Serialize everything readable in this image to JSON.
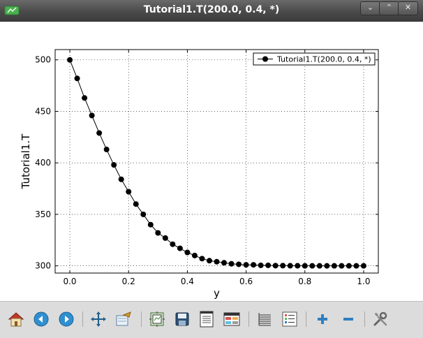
{
  "window": {
    "title": "Tutorial1.T(200.0, 0.4, *)",
    "buttons": {
      "minimize": "⌄",
      "maximize": "⌃",
      "close": "✕"
    }
  },
  "chart_data": {
    "type": "line",
    "title": "",
    "xlabel": "y",
    "ylabel": "Tutorial1.T",
    "xlim": [
      -0.05,
      1.05
    ],
    "ylim": [
      293,
      510
    ],
    "xticks": [
      0.0,
      0.2,
      0.4,
      0.6,
      0.8,
      1.0
    ],
    "xtick_labels": [
      "0.0",
      "0.2",
      "0.4",
      "0.6",
      "0.8",
      "1.0"
    ],
    "yticks": [
      300,
      350,
      400,
      450,
      500
    ],
    "ytick_labels": [
      "300",
      "350",
      "400",
      "450",
      "500"
    ],
    "grid": true,
    "legend_position": "top-right",
    "series": [
      {
        "name": "Tutorial1.T(200.0, 0.4, *)",
        "color": "#000000",
        "marker": "circle",
        "x": [
          0.0,
          0.025,
          0.05,
          0.075,
          0.1,
          0.125,
          0.15,
          0.175,
          0.2,
          0.225,
          0.25,
          0.275,
          0.3,
          0.325,
          0.35,
          0.375,
          0.4,
          0.425,
          0.45,
          0.475,
          0.5,
          0.525,
          0.55,
          0.575,
          0.6,
          0.625,
          0.65,
          0.675,
          0.7,
          0.725,
          0.75,
          0.775,
          0.8,
          0.825,
          0.85,
          0.875,
          0.9,
          0.925,
          0.95,
          0.975,
          1.0
        ],
        "y": [
          500,
          482,
          463,
          446,
          429,
          413,
          398,
          384,
          372,
          360,
          350,
          340,
          332,
          327,
          321,
          317,
          313,
          310,
          307,
          305,
          304,
          303,
          302,
          301.5,
          301,
          301,
          300.5,
          300.5,
          300.2,
          300.2,
          300.1,
          300.1,
          300,
          300,
          300,
          300,
          300,
          300,
          300,
          300,
          300
        ]
      }
    ]
  },
  "toolbar": {
    "items": [
      {
        "name": "home-button",
        "icon": "home-icon"
      },
      {
        "name": "back-button",
        "icon": "arrow-left-icon"
      },
      {
        "name": "forward-button",
        "icon": "arrow-right-icon"
      },
      {
        "name": "pan-button",
        "icon": "move-icon"
      },
      {
        "name": "zoom-button",
        "icon": "zoom-rect-icon"
      },
      {
        "name": "subplots-button",
        "icon": "subplots-icon"
      },
      {
        "name": "save-button",
        "icon": "floppy-icon"
      },
      {
        "name": "export-text-button",
        "icon": "document-icon"
      },
      {
        "name": "table-button",
        "icon": "table-icon"
      },
      {
        "name": "data-list-button",
        "icon": "list-lines-icon"
      },
      {
        "name": "legend-button",
        "icon": "legend-list-icon"
      },
      {
        "name": "zoom-in-button",
        "icon": "plus-icon"
      },
      {
        "name": "zoom-out-button",
        "icon": "minus-icon"
      },
      {
        "name": "settings-button",
        "icon": "tools-icon"
      }
    ]
  }
}
